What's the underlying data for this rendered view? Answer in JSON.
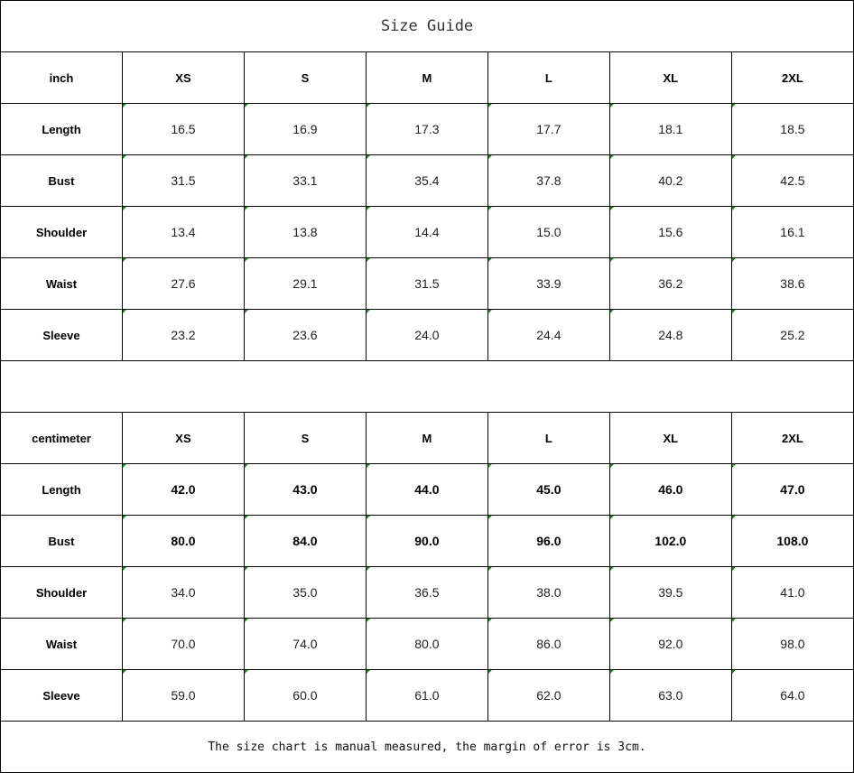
{
  "title": "Size Guide",
  "sizes": [
    "XS",
    "S",
    "M",
    "L",
    "XL",
    "2XL"
  ],
  "inch": {
    "unit_label": "inch",
    "rows": [
      {
        "label": "Length",
        "values": [
          "16.5",
          "16.9",
          "17.3",
          "17.7",
          "18.1",
          "18.5"
        ]
      },
      {
        "label": "Bust",
        "values": [
          "31.5",
          "33.1",
          "35.4",
          "37.8",
          "40.2",
          "42.5"
        ]
      },
      {
        "label": "Shoulder",
        "values": [
          "13.4",
          "13.8",
          "14.4",
          "15.0",
          "15.6",
          "16.1"
        ]
      },
      {
        "label": "Waist",
        "values": [
          "27.6",
          "29.1",
          "31.5",
          "33.9",
          "36.2",
          "38.6"
        ]
      },
      {
        "label": "Sleeve",
        "values": [
          "23.2",
          "23.6",
          "24.0",
          "24.4",
          "24.8",
          "25.2"
        ]
      }
    ]
  },
  "centimeter": {
    "unit_label": "centimeter",
    "rows": [
      {
        "label": "Length",
        "values": [
          "42.0",
          "43.0",
          "44.0",
          "45.0",
          "46.0",
          "47.0"
        ],
        "bold": true
      },
      {
        "label": "Bust",
        "values": [
          "80.0",
          "84.0",
          "90.0",
          "96.0",
          "102.0",
          "108.0"
        ],
        "bold": true
      },
      {
        "label": "Shoulder",
        "values": [
          "34.0",
          "35.0",
          "36.5",
          "38.0",
          "39.5",
          "41.0"
        ]
      },
      {
        "label": "Waist",
        "values": [
          "70.0",
          "74.0",
          "80.0",
          "86.0",
          "92.0",
          "98.0"
        ]
      },
      {
        "label": "Sleeve",
        "values": [
          "59.0",
          "60.0",
          "61.0",
          "62.0",
          "63.0",
          "64.0"
        ]
      }
    ]
  },
  "note": "The size chart is manual measured, the margin of error is 3cm."
}
